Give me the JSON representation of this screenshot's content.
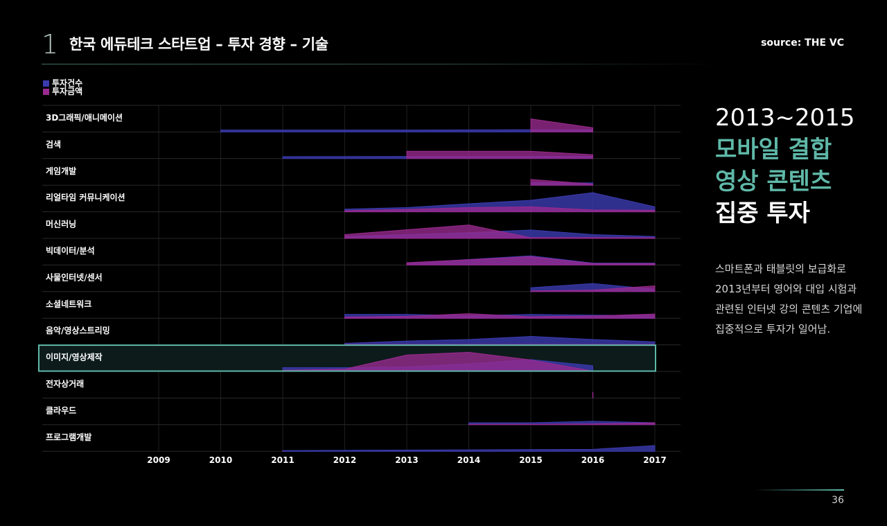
{
  "header": {
    "section_number": "1",
    "title": "한국 에듀테크 스타트업 – 투자 경향 – 기술",
    "source": "source: THE VC"
  },
  "colors": {
    "count": "#3b3bb0",
    "amount": "#9a2a8f",
    "accent": "#5fb8a8",
    "highlight_border": "#5fb8a8"
  },
  "chart_data": {
    "type": "area",
    "legend": [
      {
        "name": "투자건수",
        "color": "#3b3bb0"
      },
      {
        "name": "투자금액",
        "color": "#9a2a8f"
      }
    ],
    "x": [
      2009,
      2010,
      2011,
      2012,
      2013,
      2014,
      2015,
      2016,
      2017
    ],
    "x_tick_labels": [
      "2009",
      "2010",
      "2011",
      "2012",
      "2013",
      "2014",
      "2015",
      "2016",
      "2017"
    ],
    "highlighted_category": "이미지/영상제작",
    "rows": [
      {
        "label": "3D그래픽/애니메이션",
        "series": [
          {
            "name": "투자건수",
            "points": [
              [
                2010,
                0.1
              ],
              [
                2013,
                0.1
              ],
              [
                2015,
                0.12
              ],
              [
                2016,
                0.12
              ]
            ]
          },
          {
            "name": "투자금액",
            "points": [
              [
                2015,
                0.68
              ],
              [
                2016,
                0.22
              ]
            ]
          }
        ]
      },
      {
        "label": "검색",
        "series": [
          {
            "name": "투자건수",
            "points": [
              [
                2011,
                0.1
              ],
              [
                2015,
                0.12
              ],
              [
                2016,
                0.12
              ]
            ]
          },
          {
            "name": "투자금액",
            "points": [
              [
                2013,
                0.38
              ],
              [
                2015,
                0.38
              ],
              [
                2016,
                0.2
              ]
            ]
          }
        ]
      },
      {
        "label": "게임개발",
        "series": [
          {
            "name": "투자건수",
            "points": [
              [
                2015,
                0.14
              ],
              [
                2016,
                0.12
              ]
            ]
          },
          {
            "name": "투자금액",
            "points": [
              [
                2015,
                0.3
              ],
              [
                2016,
                0.06
              ]
            ]
          }
        ]
      },
      {
        "label": "리얼타임 커뮤니케이션",
        "series": [
          {
            "name": "투자건수",
            "points": [
              [
                2012,
                0.14
              ],
              [
                2013,
                0.22
              ],
              [
                2014,
                0.42
              ],
              [
                2015,
                0.6
              ],
              [
                2016,
                1.0
              ],
              [
                2017,
                0.26
              ]
            ]
          },
          {
            "name": "투자금액",
            "points": [
              [
                2012,
                0.06
              ],
              [
                2013,
                0.12
              ],
              [
                2014,
                0.22
              ],
              [
                2015,
                0.26
              ],
              [
                2016,
                0.1
              ],
              [
                2017,
                0.08
              ]
            ]
          }
        ]
      },
      {
        "label": "머신러닝",
        "series": [
          {
            "name": "투자건수",
            "points": [
              [
                2012,
                0.1
              ],
              [
                2014,
                0.3
              ],
              [
                2015,
                0.44
              ],
              [
                2016,
                0.2
              ],
              [
                2017,
                0.1
              ]
            ]
          },
          {
            "name": "투자금액",
            "points": [
              [
                2012,
                0.2
              ],
              [
                2014,
                0.7
              ],
              [
                2015,
                0.04
              ],
              [
                2016,
                0.04
              ],
              [
                2017,
                0.03
              ]
            ]
          }
        ]
      },
      {
        "label": "빅데이터/분석",
        "series": [
          {
            "name": "투자건수",
            "points": [
              [
                2013,
                0.1
              ],
              [
                2015,
                0.48
              ],
              [
                2016,
                0.1
              ],
              [
                2017,
                0.1
              ]
            ]
          },
          {
            "name": "투자금액",
            "points": [
              [
                2013,
                0.12
              ],
              [
                2015,
                0.44
              ],
              [
                2016,
                0.08
              ],
              [
                2017,
                0.08
              ]
            ]
          }
        ]
      },
      {
        "label": "사물인터넷/센서",
        "series": [
          {
            "name": "투자건수",
            "points": [
              [
                2015,
                0.2
              ],
              [
                2016,
                0.42
              ],
              [
                2017,
                0.12
              ]
            ]
          },
          {
            "name": "투자금액",
            "points": [
              [
                2015,
                0.04
              ],
              [
                2016,
                0.08
              ],
              [
                2017,
                0.3
              ]
            ]
          }
        ]
      },
      {
        "label": "소셜네트워크",
        "series": [
          {
            "name": "투자건수",
            "points": [
              [
                2012,
                0.2
              ],
              [
                2013,
                0.2
              ],
              [
                2014,
                0.14
              ],
              [
                2015,
                0.2
              ],
              [
                2016,
                0.16
              ],
              [
                2017,
                0.14
              ]
            ]
          },
          {
            "name": "투자금액",
            "points": [
              [
                2012,
                0.06
              ],
              [
                2013,
                0.1
              ],
              [
                2014,
                0.24
              ],
              [
                2015,
                0.08
              ],
              [
                2016,
                0.12
              ],
              [
                2017,
                0.22
              ]
            ]
          }
        ]
      },
      {
        "label": "음악/영상스트리밍",
        "series": [
          {
            "name": "투자건수",
            "points": [
              [
                2012,
                0.08
              ],
              [
                2013,
                0.2
              ],
              [
                2014,
                0.28
              ],
              [
                2015,
                0.44
              ],
              [
                2016,
                0.28
              ],
              [
                2017,
                0.16
              ]
            ]
          },
          {
            "name": "투자금액",
            "points": [
              [
                2012,
                0.02
              ],
              [
                2013,
                0.02
              ],
              [
                2014,
                0.02
              ],
              [
                2015,
                0.02
              ],
              [
                2016,
                0.02
              ],
              [
                2017,
                0.02
              ]
            ]
          }
        ]
      },
      {
        "label": "이미지/영상제작",
        "series": [
          {
            "name": "투자건수",
            "points": [
              [
                2011,
                0.2
              ],
              [
                2012,
                0.2
              ],
              [
                2013,
                0.24
              ],
              [
                2014,
                0.4
              ],
              [
                2015,
                0.62
              ],
              [
                2016,
                0.3
              ]
            ]
          },
          {
            "name": "투자금액",
            "points": [
              [
                2011,
                0.06
              ],
              [
                2012,
                0.12
              ],
              [
                2013,
                0.86
              ],
              [
                2014,
                1.0
              ],
              [
                2015,
                0.6
              ],
              [
                2016,
                0.02
              ]
            ]
          }
        ]
      },
      {
        "label": "전자상거래",
        "series": [
          {
            "name": "투자건수",
            "points": [
              [
                2016,
                0.04
              ]
            ]
          },
          {
            "name": "투자금액",
            "points": [
              [
                2016,
                0.32
              ]
            ]
          }
        ]
      },
      {
        "label": "클라우드",
        "series": [
          {
            "name": "투자건수",
            "points": [
              [
                2014,
                0.1
              ],
              [
                2015,
                0.1
              ],
              [
                2016,
                0.18
              ],
              [
                2017,
                0.1
              ]
            ]
          },
          {
            "name": "투자금액",
            "points": [
              [
                2014,
                0.02
              ],
              [
                2015,
                0.02
              ],
              [
                2016,
                0.04
              ],
              [
                2017,
                0.1
              ]
            ]
          }
        ]
      },
      {
        "label": "프로그램개발",
        "series": [
          {
            "name": "투자건수",
            "points": [
              [
                2011,
                0.04
              ],
              [
                2016,
                0.1
              ],
              [
                2017,
                0.3
              ]
            ]
          },
          {
            "name": "투자금액",
            "points": [
              [
                2011,
                0.04
              ]
            ]
          }
        ]
      }
    ]
  },
  "side": {
    "heading_line1": "2013~2015",
    "heading_line2": "모바일 결합",
    "heading_line3": "영상 콘텐츠",
    "heading_line4": "집중 투자",
    "body": "스마트폰과 태블릿의 보급화로 2013년부터 영어와 대입 시험과 관련된 인터넷 강의 콘텐츠 기업에 집중적으로 투자가 일어남."
  },
  "footer": {
    "page_number": "36"
  }
}
